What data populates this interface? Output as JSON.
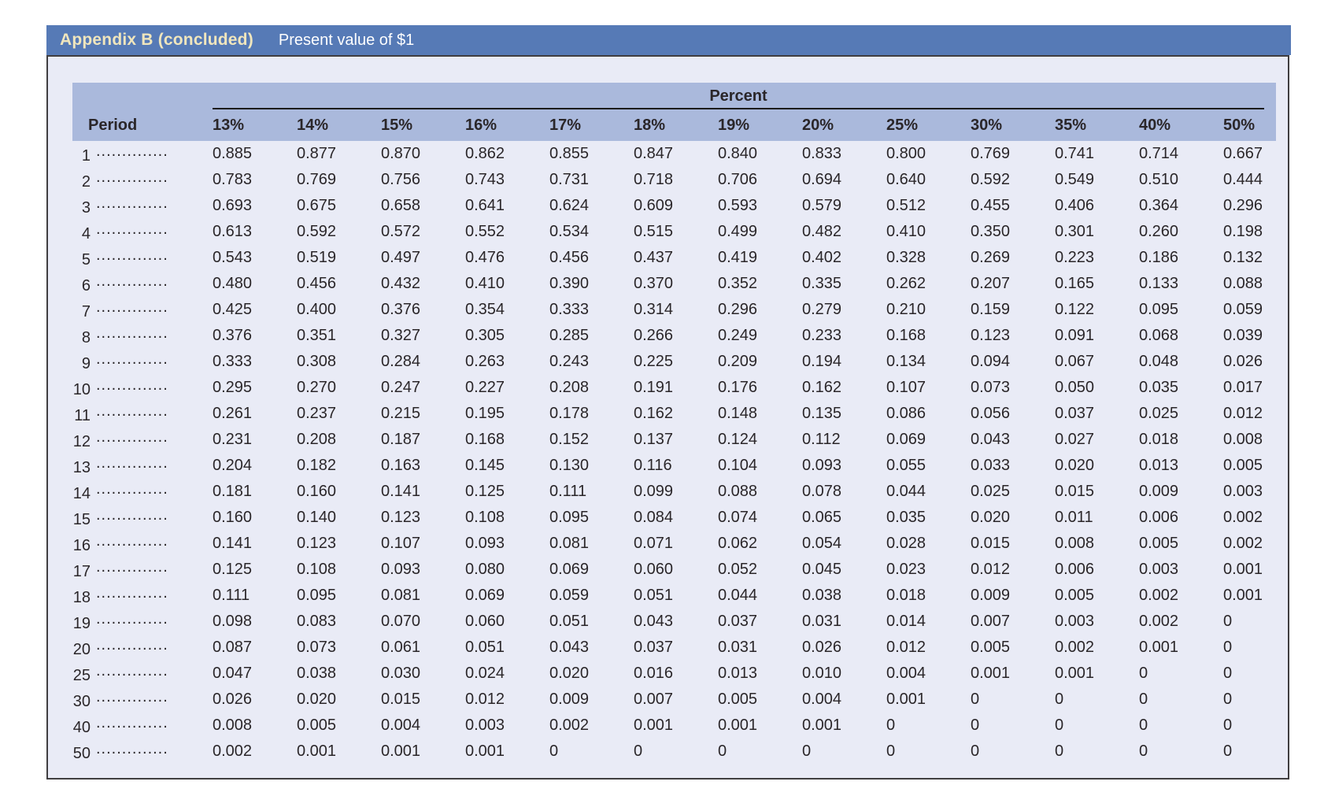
{
  "header": {
    "title": "Appendix B (concluded)",
    "subtitle": "Present value of $1"
  },
  "table": {
    "group_header": "Percent",
    "period_header": "Period",
    "leader": "......................................",
    "columns": [
      "13%",
      "14%",
      "15%",
      "16%",
      "17%",
      "18%",
      "19%",
      "20%",
      "25%",
      "30%",
      "35%",
      "40%",
      "50%"
    ],
    "rows": [
      {
        "period": "1",
        "values": [
          "0.885",
          "0.877",
          "0.870",
          "0.862",
          "0.855",
          "0.847",
          "0.840",
          "0.833",
          "0.800",
          "0.769",
          "0.741",
          "0.714",
          "0.667"
        ]
      },
      {
        "period": "2",
        "values": [
          "0.783",
          "0.769",
          "0.756",
          "0.743",
          "0.731",
          "0.718",
          "0.706",
          "0.694",
          "0.640",
          "0.592",
          "0.549",
          "0.510",
          "0.444"
        ]
      },
      {
        "period": "3",
        "values": [
          "0.693",
          "0.675",
          "0.658",
          "0.641",
          "0.624",
          "0.609",
          "0.593",
          "0.579",
          "0.512",
          "0.455",
          "0.406",
          "0.364",
          "0.296"
        ]
      },
      {
        "period": "4",
        "values": [
          "0.613",
          "0.592",
          "0.572",
          "0.552",
          "0.534",
          "0.515",
          "0.499",
          "0.482",
          "0.410",
          "0.350",
          "0.301",
          "0.260",
          "0.198"
        ]
      },
      {
        "period": "5",
        "values": [
          "0.543",
          "0.519",
          "0.497",
          "0.476",
          "0.456",
          "0.437",
          "0.419",
          "0.402",
          "0.328",
          "0.269",
          "0.223",
          "0.186",
          "0.132"
        ]
      },
      {
        "period": "6",
        "values": [
          "0.480",
          "0.456",
          "0.432",
          "0.410",
          "0.390",
          "0.370",
          "0.352",
          "0.335",
          "0.262",
          "0.207",
          "0.165",
          "0.133",
          "0.088"
        ]
      },
      {
        "period": "7",
        "values": [
          "0.425",
          "0.400",
          "0.376",
          "0.354",
          "0.333",
          "0.314",
          "0.296",
          "0.279",
          "0.210",
          "0.159",
          "0.122",
          "0.095",
          "0.059"
        ]
      },
      {
        "period": "8",
        "values": [
          "0.376",
          "0.351",
          "0.327",
          "0.305",
          "0.285",
          "0.266",
          "0.249",
          "0.233",
          "0.168",
          "0.123",
          "0.091",
          "0.068",
          "0.039"
        ]
      },
      {
        "period": "9",
        "values": [
          "0.333",
          "0.308",
          "0.284",
          "0.263",
          "0.243",
          "0.225",
          "0.209",
          "0.194",
          "0.134",
          "0.094",
          "0.067",
          "0.048",
          "0.026"
        ]
      },
      {
        "period": "10",
        "values": [
          "0.295",
          "0.270",
          "0.247",
          "0.227",
          "0.208",
          "0.191",
          "0.176",
          "0.162",
          "0.107",
          "0.073",
          "0.050",
          "0.035",
          "0.017"
        ]
      },
      {
        "period": "11",
        "values": [
          "0.261",
          "0.237",
          "0.215",
          "0.195",
          "0.178",
          "0.162",
          "0.148",
          "0.135",
          "0.086",
          "0.056",
          "0.037",
          "0.025",
          "0.012"
        ]
      },
      {
        "period": "12",
        "values": [
          "0.231",
          "0.208",
          "0.187",
          "0.168",
          "0.152",
          "0.137",
          "0.124",
          "0.112",
          "0.069",
          "0.043",
          "0.027",
          "0.018",
          "0.008"
        ]
      },
      {
        "period": "13",
        "values": [
          "0.204",
          "0.182",
          "0.163",
          "0.145",
          "0.130",
          "0.116",
          "0.104",
          "0.093",
          "0.055",
          "0.033",
          "0.020",
          "0.013",
          "0.005"
        ]
      },
      {
        "period": "14",
        "values": [
          "0.181",
          "0.160",
          "0.141",
          "0.125",
          "0.111",
          "0.099",
          "0.088",
          "0.078",
          "0.044",
          "0.025",
          "0.015",
          "0.009",
          "0.003"
        ]
      },
      {
        "period": "15",
        "values": [
          "0.160",
          "0.140",
          "0.123",
          "0.108",
          "0.095",
          "0.084",
          "0.074",
          "0.065",
          "0.035",
          "0.020",
          "0.011",
          "0.006",
          "0.002"
        ]
      },
      {
        "period": "16",
        "values": [
          "0.141",
          "0.123",
          "0.107",
          "0.093",
          "0.081",
          "0.071",
          "0.062",
          "0.054",
          "0.028",
          "0.015",
          "0.008",
          "0.005",
          "0.002"
        ]
      },
      {
        "period": "17",
        "values": [
          "0.125",
          "0.108",
          "0.093",
          "0.080",
          "0.069",
          "0.060",
          "0.052",
          "0.045",
          "0.023",
          "0.012",
          "0.006",
          "0.003",
          "0.001"
        ]
      },
      {
        "period": "18",
        "values": [
          "0.111",
          "0.095",
          "0.081",
          "0.069",
          "0.059",
          "0.051",
          "0.044",
          "0.038",
          "0.018",
          "0.009",
          "0.005",
          "0.002",
          "0.001"
        ]
      },
      {
        "period": "19",
        "values": [
          "0.098",
          "0.083",
          "0.070",
          "0.060",
          "0.051",
          "0.043",
          "0.037",
          "0.031",
          "0.014",
          "0.007",
          "0.003",
          "0.002",
          "0"
        ]
      },
      {
        "period": "20",
        "values": [
          "0.087",
          "0.073",
          "0.061",
          "0.051",
          "0.043",
          "0.037",
          "0.031",
          "0.026",
          "0.012",
          "0.005",
          "0.002",
          "0.001",
          "0"
        ]
      },
      {
        "period": "25",
        "values": [
          "0.047",
          "0.038",
          "0.030",
          "0.024",
          "0.020",
          "0.016",
          "0.013",
          "0.010",
          "0.004",
          "0.001",
          "0.001",
          "0",
          "0"
        ]
      },
      {
        "period": "30",
        "values": [
          "0.026",
          "0.020",
          "0.015",
          "0.012",
          "0.009",
          "0.007",
          "0.005",
          "0.004",
          "0.001",
          "0",
          "0",
          "0",
          "0"
        ]
      },
      {
        "period": "40",
        "values": [
          "0.008",
          "0.005",
          "0.004",
          "0.003",
          "0.002",
          "0.001",
          "0.001",
          "0.001",
          "0",
          "0",
          "0",
          "0",
          "0"
        ]
      },
      {
        "period": "50",
        "values": [
          "0.002",
          "0.001",
          "0.001",
          "0.001",
          "0",
          "0",
          "0",
          "0",
          "0",
          "0",
          "0",
          "0",
          "0"
        ]
      }
    ]
  },
  "colors": {
    "title-bar": "#567ab6",
    "band": "#aab9dc",
    "card-bg": "#e9ebf6",
    "card-border": "#403e40",
    "ink": "#2a2629",
    "title-ink": "#f0e6bd",
    "subtitle-ink": "#ffffff",
    "rule": "#1c1c1c"
  }
}
